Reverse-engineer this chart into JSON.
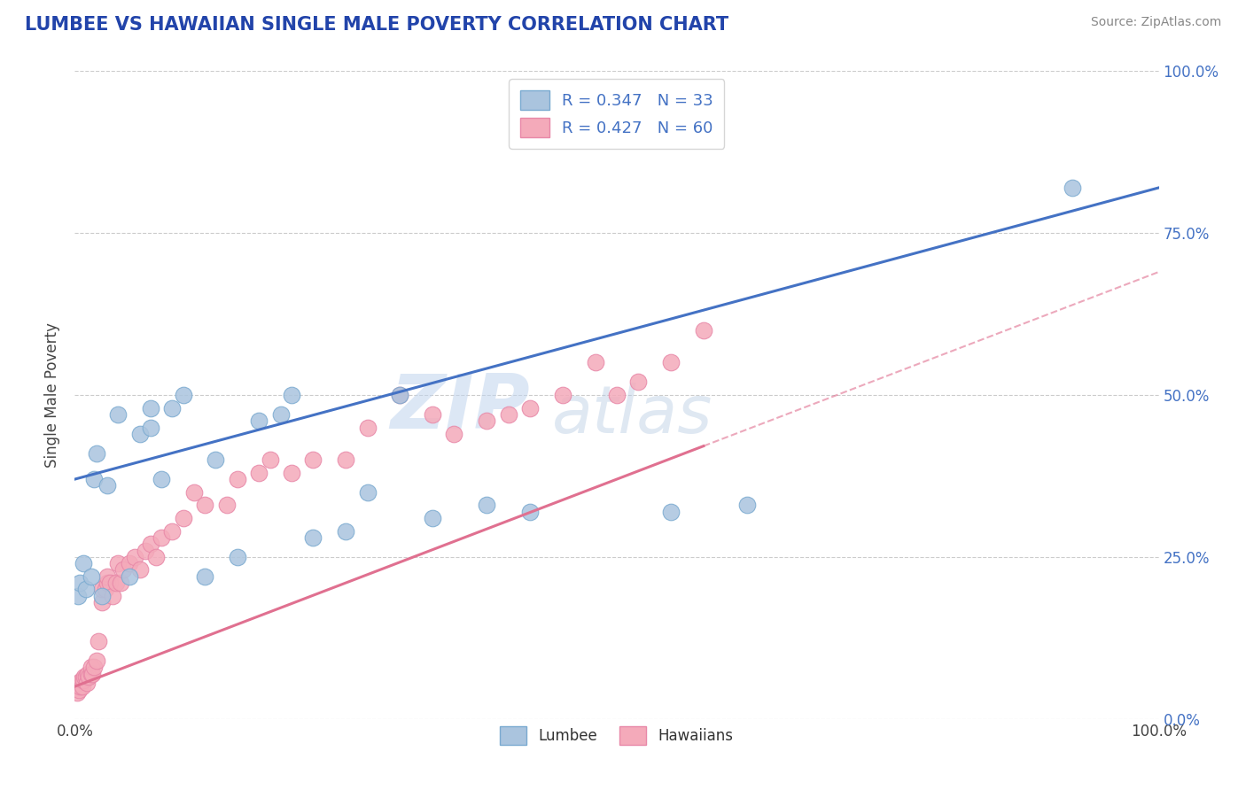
{
  "title": "LUMBEE VS HAWAIIAN SINGLE MALE POVERTY CORRELATION CHART",
  "source": "Source: ZipAtlas.com",
  "ylabel": "Single Male Poverty",
  "xlim": [
    0.0,
    1.0
  ],
  "ylim": [
    0.0,
    1.0
  ],
  "ytick_positions": [
    0.0,
    0.25,
    0.5,
    0.75,
    1.0
  ],
  "ytick_labels": [
    "0.0%",
    "25.0%",
    "50.0%",
    "75.0%",
    "100.0%"
  ],
  "lumbee_color": "#aac4de",
  "hawaiian_color": "#f4aaba",
  "lumbee_edge": "#7aaad0",
  "hawaiian_edge": "#e888a8",
  "lumbee_line_color": "#4472c4",
  "hawaiian_line_color": "#e07090",
  "grid_color": "#cccccc",
  "R_lumbee": "0.347",
  "N_lumbee": "33",
  "R_hawaiian": "0.427",
  "N_hawaiian": "60",
  "legend_label_lumbee": "Lumbee",
  "legend_label_hawaiian": "Hawaiians",
  "lumbee_x": [
    0.003,
    0.005,
    0.008,
    0.01,
    0.015,
    0.018,
    0.02,
    0.025,
    0.03,
    0.04,
    0.05,
    0.06,
    0.07,
    0.07,
    0.08,
    0.09,
    0.1,
    0.12,
    0.13,
    0.15,
    0.17,
    0.19,
    0.2,
    0.22,
    0.25,
    0.27,
    0.3,
    0.33,
    0.38,
    0.42,
    0.55,
    0.62,
    0.92
  ],
  "lumbee_y": [
    0.19,
    0.21,
    0.24,
    0.2,
    0.22,
    0.37,
    0.41,
    0.19,
    0.36,
    0.47,
    0.22,
    0.44,
    0.45,
    0.48,
    0.37,
    0.48,
    0.5,
    0.22,
    0.4,
    0.25,
    0.46,
    0.47,
    0.5,
    0.28,
    0.29,
    0.35,
    0.5,
    0.31,
    0.33,
    0.32,
    0.32,
    0.33,
    0.82
  ],
  "hawaiian_x": [
    0.002,
    0.003,
    0.004,
    0.005,
    0.006,
    0.007,
    0.008,
    0.009,
    0.01,
    0.011,
    0.012,
    0.013,
    0.015,
    0.015,
    0.016,
    0.018,
    0.02,
    0.022,
    0.025,
    0.025,
    0.028,
    0.03,
    0.03,
    0.032,
    0.035,
    0.038,
    0.04,
    0.042,
    0.045,
    0.05,
    0.055,
    0.06,
    0.065,
    0.07,
    0.075,
    0.08,
    0.09,
    0.1,
    0.11,
    0.12,
    0.14,
    0.15,
    0.17,
    0.18,
    0.2,
    0.22,
    0.25,
    0.27,
    0.3,
    0.33,
    0.35,
    0.38,
    0.4,
    0.42,
    0.45,
    0.48,
    0.5,
    0.52,
    0.55,
    0.58
  ],
  "hawaiian_y": [
    0.04,
    0.055,
    0.045,
    0.05,
    0.06,
    0.05,
    0.06,
    0.065,
    0.065,
    0.055,
    0.07,
    0.065,
    0.07,
    0.08,
    0.07,
    0.08,
    0.09,
    0.12,
    0.18,
    0.2,
    0.2,
    0.21,
    0.22,
    0.21,
    0.19,
    0.21,
    0.24,
    0.21,
    0.23,
    0.24,
    0.25,
    0.23,
    0.26,
    0.27,
    0.25,
    0.28,
    0.29,
    0.31,
    0.35,
    0.33,
    0.33,
    0.37,
    0.38,
    0.4,
    0.38,
    0.4,
    0.4,
    0.45,
    0.5,
    0.47,
    0.44,
    0.46,
    0.47,
    0.48,
    0.5,
    0.55,
    0.5,
    0.52,
    0.55,
    0.6
  ]
}
